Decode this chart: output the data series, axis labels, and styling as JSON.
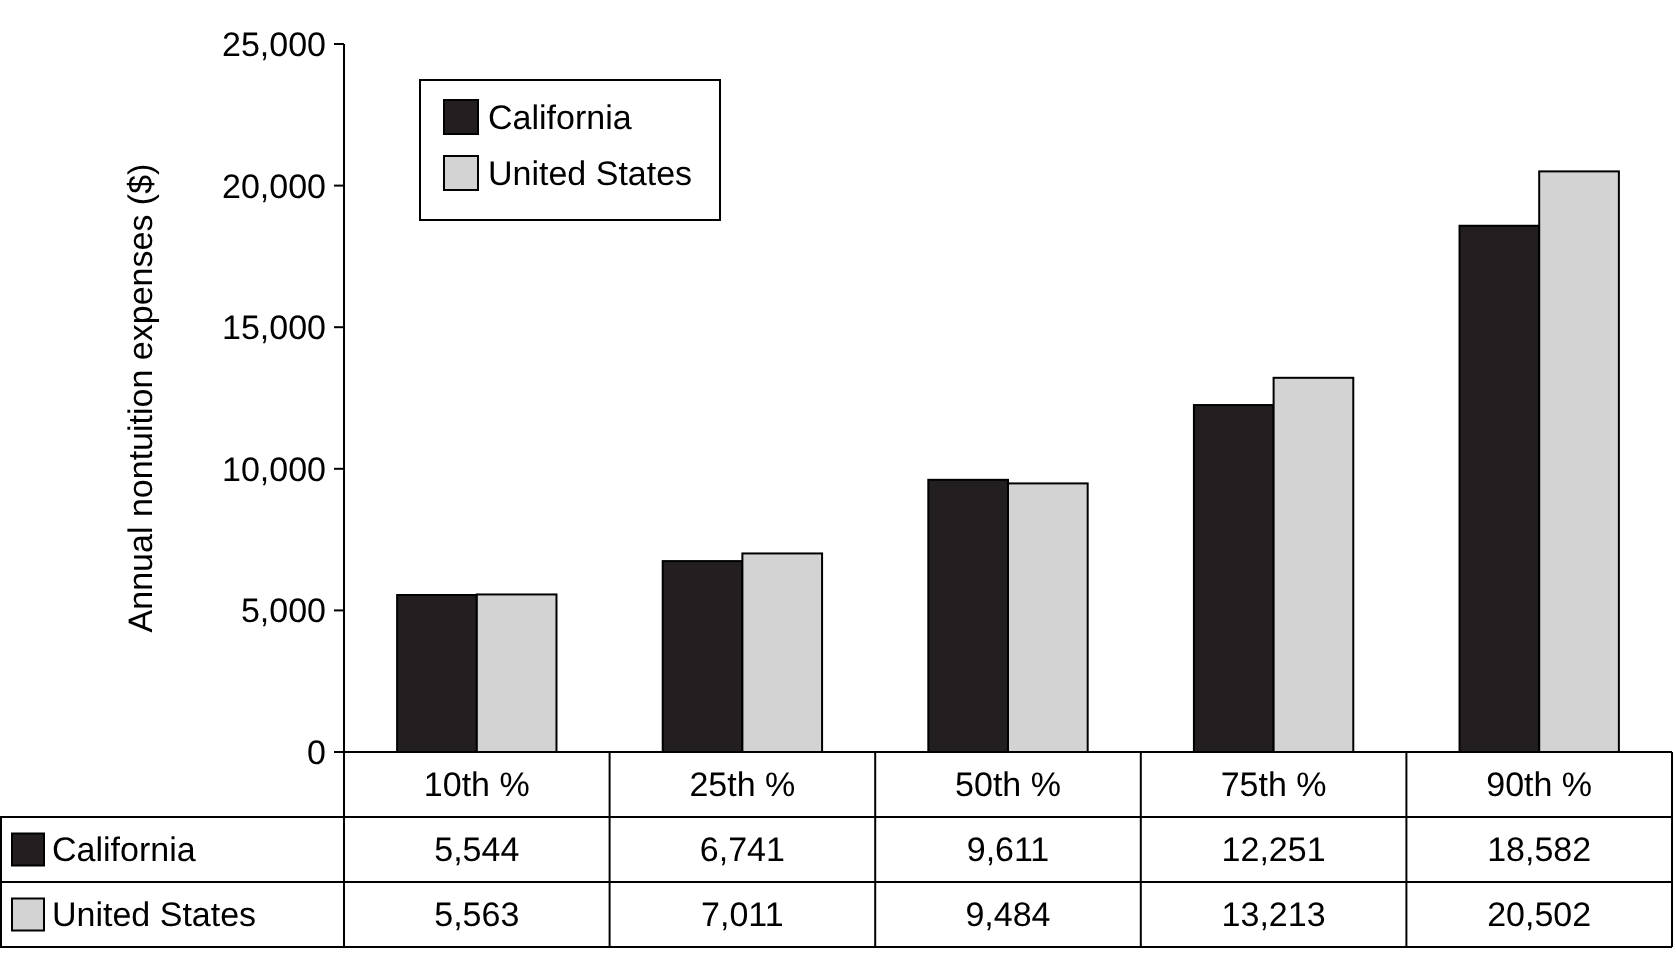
{
  "chart_data": {
    "type": "bar",
    "ylabel": "Annual nontuition expenses ($)",
    "categories": [
      "10th %",
      "25th %",
      "50th %",
      "75th %",
      "90th %"
    ],
    "series": [
      {
        "name": "California",
        "color": "#231f20",
        "values": [
          5544,
          6741,
          9611,
          12251,
          18582
        ],
        "value_labels": [
          "5,544",
          "6,741",
          "9,611",
          "12,251",
          "18,582"
        ]
      },
      {
        "name": "United States",
        "color": "#d3d3d3",
        "values": [
          5563,
          7011,
          9484,
          13213,
          20502
        ],
        "value_labels": [
          "5,563",
          "7,011",
          "9,484",
          "13,213",
          "20,502"
        ]
      }
    ],
    "ylim": [
      0,
      25000
    ],
    "yticks": [
      {
        "value": 0,
        "label": "0"
      },
      {
        "value": 5000,
        "label": "5,000"
      },
      {
        "value": 10000,
        "label": "10,000"
      },
      {
        "value": 15000,
        "label": "15,000"
      },
      {
        "value": 20000,
        "label": "20,000"
      },
      {
        "value": 25000,
        "label": "25,000"
      }
    ],
    "legend": "top left",
    "grid": false
  }
}
